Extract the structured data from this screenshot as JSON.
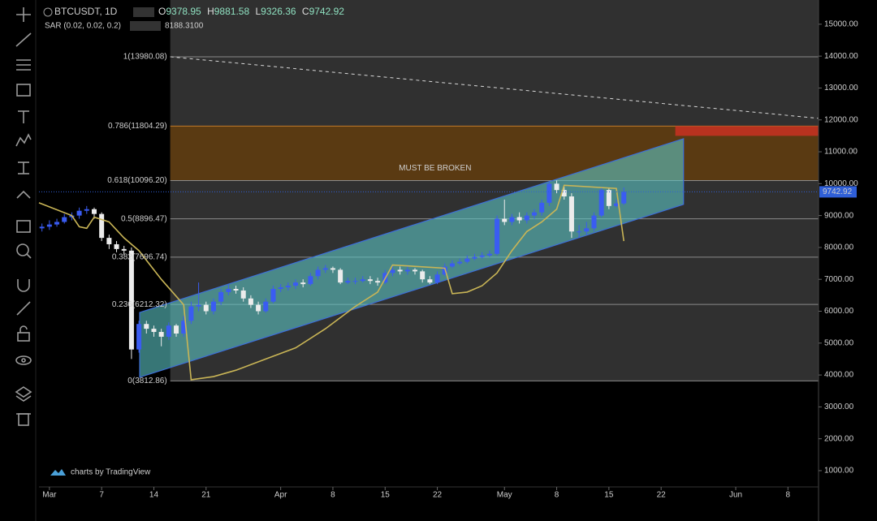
{
  "chart_data": {
    "type": "candlestick",
    "header": {
      "symbol": "BTCUSDT, 1D",
      "ohlc_labels": [
        "O",
        "H",
        "L",
        "C"
      ]
    },
    "sar": {
      "name": "SAR (0.02, 0.02, 0.2)",
      "value": 8188.31,
      "value_label": "8188.3100",
      "color": "#c9b556",
      "x": [
        -1.4,
        3,
        4,
        5,
        6,
        8,
        10,
        12,
        15,
        18,
        18.5,
        19,
        22,
        25,
        29,
        33,
        37,
        41,
        44,
        46,
        53,
        54,
        56,
        58,
        60,
        62,
        64,
        66,
        68,
        69,
        76,
        77
      ],
      "values": [
        9400,
        9000,
        8650,
        8600,
        8950,
        8800,
        8300,
        7900,
        7000,
        6200,
        5000,
        3850,
        3950,
        4150,
        4500,
        4850,
        5450,
        6150,
        6600,
        7450,
        7350,
        6550,
        6600,
        6800,
        7200,
        7900,
        8500,
        8800,
        9200,
        9950,
        9850,
        8200
      ]
    },
    "candles": {
      "up_color": "#3a5cf2",
      "down_color": "#ececec",
      "x": [
        -1,
        0,
        1,
        2,
        3,
        4,
        5,
        6,
        7,
        8,
        9,
        10,
        11,
        12,
        13,
        14,
        15,
        16,
        17,
        18,
        19,
        20,
        21,
        22,
        23,
        24,
        25,
        26,
        27,
        28,
        29,
        30,
        31,
        32,
        33,
        34,
        35,
        36,
        37,
        38,
        39,
        40,
        41,
        42,
        43,
        44,
        45,
        46,
        47,
        48,
        49,
        50,
        51,
        52,
        53,
        54,
        55,
        56,
        57,
        58,
        59,
        60,
        61,
        62,
        63,
        64,
        65,
        66,
        67,
        68,
        69,
        70,
        71,
        72,
        73,
        74,
        75,
        76,
        77
      ],
      "open": [
        8600,
        8650,
        8720,
        8800,
        8950,
        9000,
        9150,
        9200,
        9050,
        8300,
        8100,
        7950,
        7900,
        4800,
        5600,
        5450,
        5350,
        5200,
        5550,
        5300,
        5700,
        6150,
        6200,
        6000,
        6300,
        6600,
        6700,
        6650,
        6400,
        6200,
        6000,
        6300,
        6700,
        6750,
        6800,
        6900,
        6850,
        7100,
        7300,
        7350,
        7300,
        6900,
        6950,
        6950,
        7000,
        6950,
        6900,
        7200,
        7300,
        7250,
        7300,
        7250,
        7000,
        6900,
        7150,
        7400,
        7500,
        7550,
        7650,
        7700,
        7750,
        7800,
        8900,
        8800,
        8950,
        8850,
        9000,
        9100,
        9400,
        10000,
        9800,
        9600,
        8500,
        8500,
        8600,
        9000,
        9800,
        9300,
        9378.95
      ],
      "high": [
        8750,
        8850,
        8900,
        9050,
        9100,
        9250,
        9300,
        9250,
        9100,
        8400,
        8200,
        8050,
        8000,
        5700,
        5700,
        5550,
        5450,
        5650,
        5600,
        5850,
        6300,
        6900,
        6300,
        6400,
        6700,
        6850,
        6800,
        6750,
        6500,
        6300,
        6400,
        6800,
        6850,
        6900,
        7000,
        7000,
        7200,
        7400,
        7450,
        7400,
        7350,
        7050,
        7050,
        7100,
        7100,
        7050,
        7300,
        7400,
        7400,
        7400,
        7350,
        7300,
        7100,
        7250,
        7500,
        7600,
        7650,
        7750,
        7800,
        7850,
        7900,
        9000,
        9500,
        9050,
        9100,
        9100,
        9200,
        9500,
        10050,
        10100,
        9900,
        9700,
        8700,
        8800,
        9100,
        9900,
        9850,
        9500,
        9881.58
      ],
      "low": [
        8500,
        8550,
        8650,
        8750,
        8850,
        8900,
        9050,
        8900,
        8200,
        7950,
        7850,
        7750,
        4500,
        4700,
        5300,
        5200,
        4900,
        5100,
        5200,
        5200,
        5600,
        6000,
        5900,
        5900,
        6200,
        6500,
        6550,
        6300,
        6100,
        5900,
        5950,
        6250,
        6600,
        6650,
        6700,
        6750,
        6800,
        7000,
        7200,
        7200,
        6850,
        6850,
        6850,
        6900,
        6850,
        6800,
        6850,
        7100,
        7150,
        7150,
        7150,
        6900,
        6850,
        6850,
        7100,
        7350,
        7450,
        7500,
        7600,
        7650,
        7700,
        7750,
        8700,
        8700,
        8750,
        8750,
        8900,
        9000,
        9300,
        9700,
        9500,
        8300,
        8300,
        8400,
        8500,
        8950,
        9200,
        9250,
        9326.36
      ],
      "close": [
        8650,
        8720,
        8800,
        8950,
        9000,
        9150,
        9200,
        9050,
        8300,
        8100,
        7950,
        7900,
        4800,
        5600,
        5450,
        5350,
        5200,
        5550,
        5300,
        5700,
        6150,
        6200,
        6000,
        6300,
        6600,
        6700,
        6650,
        6400,
        6200,
        6000,
        6300,
        6700,
        6750,
        6800,
        6900,
        6850,
        7100,
        7300,
        7350,
        7300,
        6900,
        6950,
        6950,
        7000,
        6950,
        6900,
        7200,
        7300,
        7250,
        7300,
        7250,
        7000,
        6900,
        7150,
        7400,
        7500,
        7550,
        7650,
        7700,
        7750,
        7800,
        8900,
        8800,
        8950,
        8850,
        9000,
        9100,
        9400,
        10000,
        9800,
        9600,
        8500,
        8500,
        8600,
        9000,
        9800,
        9300,
        9378.95,
        9742.92
      ],
      "last_price_color": "#2f5fd8"
    },
    "fib": {
      "x": 16.2,
      "background": "#303030",
      "line_color": "#8a8a8a",
      "levels": [
        {
          "value": 13980.08,
          "label": "1(13980.08)"
        },
        {
          "value": 11804.29,
          "label": "0.786(11804.29)"
        },
        {
          "value": 10096.2,
          "label": "0.618(10096.20)"
        },
        {
          "value": 8896.47,
          "label": "0.5(8896.47)"
        },
        {
          "value": 7696.74,
          "label": "0.382(7696.74)"
        },
        {
          "value": 6212.32,
          "label": "0.236(6212.32)"
        },
        {
          "value": 3812.86,
          "label": "0(3812.86)"
        }
      ],
      "band_color": "#5a3a12",
      "band_line_color": "#c07a2a"
    },
    "resistance": {
      "x": [
        83.9,
        103.1
      ],
      "values": [
        11500,
        11804.29
      ],
      "color": "#b8321f"
    },
    "channel": {
      "x": [
        12.1,
        85
      ],
      "lower": [
        3930,
        9350
      ],
      "upper": [
        5960,
        11410
      ],
      "color": "#5cc4c4",
      "stroke": "#3d6fd8"
    },
    "trendline": {
      "x": [
        16.2,
        103.1
      ],
      "values": [
        13980.08,
        12050
      ],
      "color": "#d8d8d8"
    },
    "annotation": "MUST BE BROKEN",
    "branding": "charts by TradingView",
    "xlim": [
      -1.4,
      103.1
    ],
    "ylim": [
      490,
      15760
    ],
    "xticks": [
      {
        "value": 0,
        "label": "Mar"
      },
      7,
      14,
      21,
      {
        "value": 31,
        "label": "Apr"
      },
      {
        "value": 38,
        "label": "8"
      },
      {
        "value": 45,
        "label": "15"
      },
      {
        "value": 52,
        "label": "22"
      },
      {
        "value": 61,
        "label": "May"
      },
      {
        "value": 68,
        "label": "8"
      },
      {
        "value": 75,
        "label": "15"
      },
      {
        "value": 82,
        "label": "22"
      },
      {
        "value": 92,
        "label": "Jun"
      },
      {
        "value": 99,
        "label": "8"
      }
    ],
    "yticks": [
      {
        "value": 15000,
        "label": "15000.00"
      },
      {
        "value": 14000,
        "label": "14000.00"
      },
      {
        "value": 13000,
        "label": "13000.00"
      },
      {
        "value": 12000,
        "label": "12000.00"
      },
      {
        "value": 11000,
        "label": "11000.00"
      },
      {
        "value": 10000,
        "label": "10000.00"
      },
      {
        "value": 9000,
        "label": "9000.00"
      },
      {
        "value": 8000,
        "label": "8000.00"
      },
      {
        "value": 7000,
        "label": "7000.00"
      },
      {
        "value": 6000,
        "label": "6000.00"
      },
      {
        "value": 5000,
        "label": "5000.00"
      },
      {
        "value": 4000,
        "label": "4000.00"
      },
      {
        "value": 3000,
        "label": "3000.00"
      },
      {
        "value": 2000,
        "label": "2000.00"
      },
      {
        "value": 1000,
        "label": "1000.00"
      }
    ]
  }
}
